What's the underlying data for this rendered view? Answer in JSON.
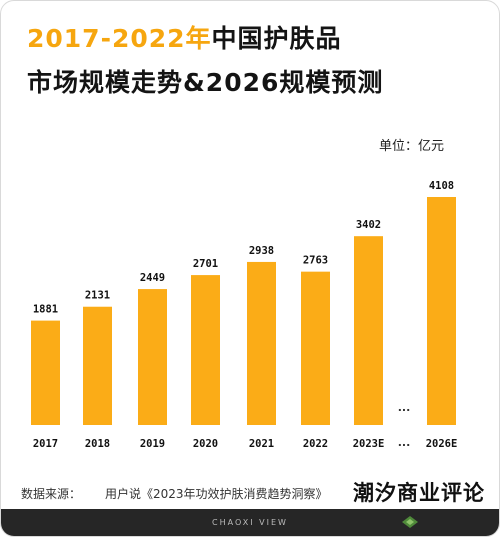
{
  "title": {
    "line1_year": "2017-2022年",
    "line1_rest": "中国护肤品",
    "line2": "市场规模走势&2026规模预测"
  },
  "unit": "单位：亿元",
  "chart_data": {
    "type": "bar",
    "categories": [
      "2017",
      "2018",
      "2019",
      "2020",
      "2021",
      "2022",
      "2023E",
      "2026E"
    ],
    "values": [
      1881,
      2131,
      2449,
      2701,
      2938,
      2763,
      3402,
      4108
    ],
    "title": "2017-2022年中国护肤品市场规模走势&2026规模预测",
    "ylabel": "单位：亿元",
    "ylim": [
      0,
      4108
    ],
    "gap_marker": "...",
    "bar_color": "#fbac17",
    "grid": false
  },
  "source": {
    "label": "数据来源：",
    "text": "用户说《2023年功效护肤消费趋势洞察》"
  },
  "brand": "潮汐商业评论",
  "footer": {
    "text": "CHAOXI VIEW"
  },
  "colors": {
    "accent": "#fbac17",
    "title_year": "#f6a60f",
    "footer_bg": "#262626"
  },
  "icons": {
    "footer_logo": "leaf-logo-icon"
  }
}
